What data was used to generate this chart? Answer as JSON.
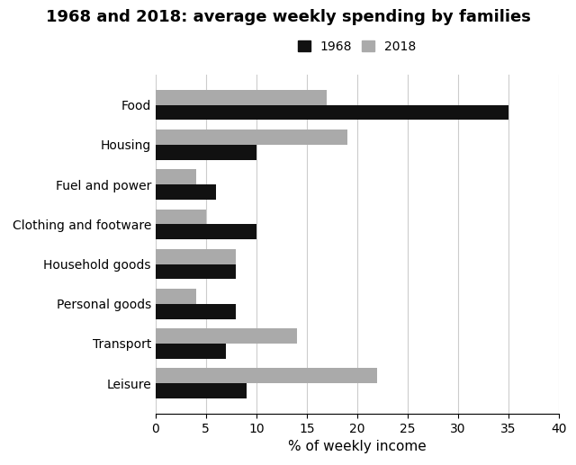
{
  "title": "1968 and 2018: average weekly spending by families",
  "xlabel": "% of weekly income",
  "categories": [
    "Food",
    "Housing",
    "Fuel and power",
    "Clothing and footware",
    "Household goods",
    "Personal goods",
    "Transport",
    "Leisure"
  ],
  "values_1968": [
    35,
    10,
    6,
    10,
    8,
    8,
    7,
    9
  ],
  "values_2018": [
    17,
    19,
    4,
    5,
    8,
    4,
    14,
    22
  ],
  "color_1968": "#111111",
  "color_2018": "#aaaaaa",
  "legend_labels": [
    "1968",
    "2018"
  ],
  "xlim": [
    0,
    40
  ],
  "xticks": [
    0,
    5,
    10,
    15,
    20,
    25,
    30,
    35,
    40
  ],
  "bar_height": 0.38,
  "figsize": [
    6.4,
    5.17
  ],
  "dpi": 100,
  "title_fontsize": 13,
  "label_fontsize": 11,
  "tick_fontsize": 10,
  "legend_fontsize": 10,
  "background_color": "#ffffff"
}
